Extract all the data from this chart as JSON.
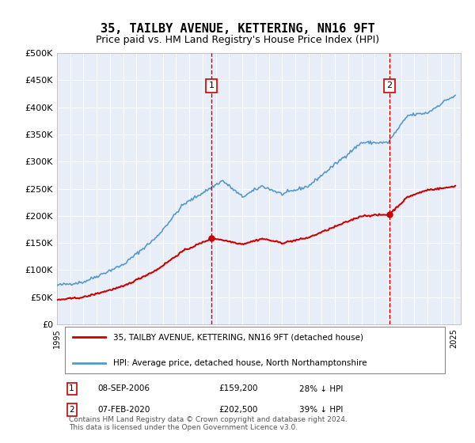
{
  "title": "35, TAILBY AVENUE, KETTERING, NN16 9FT",
  "subtitle": "Price paid vs. HM Land Registry's House Price Index (HPI)",
  "legend_line1": "35, TAILBY AVENUE, KETTERING, NN16 9FT (detached house)",
  "legend_line2": "HPI: Average price, detached house, North Northamptonshire",
  "purchase1_date": "2006-09-08",
  "purchase1_price": 159200,
  "purchase1_label": "1",
  "purchase1_info": "08-SEP-2006    £159,200    28% ↓ HPI",
  "purchase2_date": "2020-02-07",
  "purchase2_price": 202500,
  "purchase2_label": "2",
  "purchase2_info": "07-FEB-2020    £202,500    39% ↓ HPI",
  "red_color": "#cc0000",
  "blue_color": "#5599cc",
  "bg_color": "#e8eef8",
  "grid_color": "#ffffff",
  "ylim": [
    0,
    500000
  ],
  "yticks": [
    0,
    50000,
    100000,
    150000,
    200000,
    250000,
    300000,
    350000,
    400000,
    450000,
    500000
  ],
  "footnote": "Contains HM Land Registry data © Crown copyright and database right 2024.\nThis data is licensed under the Open Government Licence v3.0.",
  "title_fontsize": 11,
  "subtitle_fontsize": 9
}
